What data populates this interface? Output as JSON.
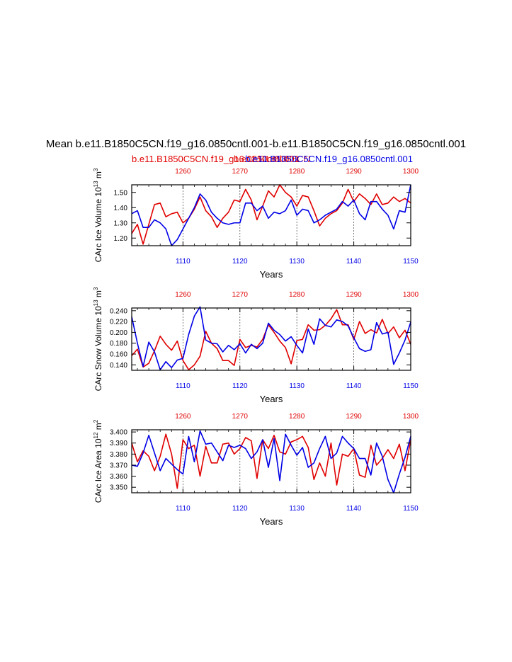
{
  "figure": {
    "title": "Mean b.e11.B1850C5CN.f19_g16.0850cntl.001-b.e11.B1850C5CN.f19_g16.0850cntl.001",
    "legend": {
      "red": "b.e11.B1850C5CN.f19_g16.0850cntl.001",
      "blue": "b.e11.B1850C5CN.f19_g16.0850cntl.001",
      "overlap": "b.e11.B1850C5CN"
    }
  },
  "colors": {
    "red": "#e00000",
    "blue": "#0000e6",
    "axis": "#000000"
  },
  "chart_data": [
    {
      "type": "line",
      "ylabel": "CArc Ice Volume",
      "ylabel_units": "10^13 m^3",
      "unit_mult": "10",
      "unit_mult_exp": "13",
      "unit_base": " m",
      "unit_base_exp": "3",
      "xlabel": "Years",
      "ylim": [
        1.15,
        1.55
      ],
      "yticks": [
        1.2,
        1.3,
        1.4,
        1.5
      ],
      "ytick_labels": [
        "1.20",
        "1.30",
        "1.40",
        "1.50"
      ],
      "bottom_axis": {
        "range": [
          1101,
          1150
        ],
        "ticks": [
          1110,
          1120,
          1130,
          1140,
          1150
        ],
        "tick_labels": [
          "1110",
          "1120",
          "1130",
          "1140",
          "1150"
        ]
      },
      "top_axis": {
        "range": [
          1251,
          1300
        ],
        "ticks": [
          1260,
          1270,
          1280,
          1290,
          1300
        ],
        "tick_labels": [
          "1260",
          "1270",
          "1280",
          "1290",
          "1300"
        ]
      },
      "series": [
        {
          "name": "red",
          "axis": "top",
          "values": [
            1.23,
            1.29,
            1.16,
            1.29,
            1.42,
            1.43,
            1.34,
            1.36,
            1.37,
            1.3,
            1.33,
            1.39,
            1.47,
            1.38,
            1.34,
            1.27,
            1.33,
            1.37,
            1.45,
            1.44,
            1.52,
            1.45,
            1.32,
            1.41,
            1.51,
            1.47,
            1.55,
            1.5,
            1.47,
            1.41,
            1.48,
            1.47,
            1.38,
            1.28,
            1.33,
            1.36,
            1.38,
            1.43,
            1.52,
            1.44,
            1.49,
            1.46,
            1.42,
            1.49,
            1.42,
            1.43,
            1.47,
            1.44,
            1.46,
            1.43
          ]
        },
        {
          "name": "blue",
          "axis": "bottom",
          "values": [
            1.36,
            1.38,
            1.27,
            1.27,
            1.32,
            1.3,
            1.26,
            1.15,
            1.19,
            1.26,
            1.33,
            1.4,
            1.49,
            1.45,
            1.37,
            1.33,
            1.3,
            1.29,
            1.3,
            1.3,
            1.43,
            1.43,
            1.38,
            1.41,
            1.33,
            1.37,
            1.36,
            1.38,
            1.45,
            1.35,
            1.39,
            1.38,
            1.3,
            1.32,
            1.35,
            1.37,
            1.39,
            1.44,
            1.41,
            1.45,
            1.36,
            1.32,
            1.44,
            1.44,
            1.39,
            1.35,
            1.26,
            1.38,
            1.37,
            1.55
          ]
        }
      ]
    },
    {
      "type": "line",
      "ylabel": "CArc Snow Volume",
      "ylabel_units": "10^13 m^3",
      "unit_mult": "10",
      "unit_mult_exp": "13",
      "unit_base": " m",
      "unit_base_exp": "3",
      "xlabel": "Years",
      "ylim": [
        0.13,
        0.245
      ],
      "yticks": [
        0.14,
        0.16,
        0.18,
        0.2,
        0.22,
        0.24
      ],
      "ytick_labels": [
        "0.140",
        "0.160",
        "0.180",
        "0.200",
        "0.220",
        "0.240"
      ],
      "bottom_axis": {
        "range": [
          1101,
          1150
        ],
        "ticks": [
          1110,
          1120,
          1130,
          1140,
          1150
        ],
        "tick_labels": [
          "1110",
          "1120",
          "1130",
          "1140",
          "1150"
        ]
      },
      "top_axis": {
        "range": [
          1251,
          1300
        ],
        "ticks": [
          1260,
          1270,
          1280,
          1290,
          1300
        ],
        "tick_labels": [
          "1260",
          "1270",
          "1280",
          "1290",
          "1300"
        ]
      },
      "series": [
        {
          "name": "red",
          "axis": "top",
          "values": [
            0.157,
            0.169,
            0.136,
            0.143,
            0.166,
            0.193,
            0.178,
            0.167,
            0.184,
            0.148,
            0.131,
            0.14,
            0.156,
            0.202,
            0.18,
            0.17,
            0.148,
            0.148,
            0.139,
            0.187,
            0.172,
            0.176,
            0.173,
            0.187,
            0.214,
            0.2,
            0.184,
            0.172,
            0.142,
            0.185,
            0.187,
            0.214,
            0.204,
            0.205,
            0.213,
            0.225,
            0.242,
            0.214,
            0.214,
            0.187,
            0.22,
            0.198,
            0.205,
            0.199,
            0.224,
            0.198,
            0.21,
            0.19,
            0.204,
            0.178
          ]
        },
        {
          "name": "blue",
          "axis": "bottom",
          "values": [
            0.229,
            0.18,
            0.137,
            0.182,
            0.164,
            0.131,
            0.146,
            0.135,
            0.149,
            0.152,
            0.196,
            0.23,
            0.247,
            0.186,
            0.18,
            0.179,
            0.164,
            0.176,
            0.168,
            0.179,
            0.162,
            0.178,
            0.17,
            0.18,
            0.217,
            0.204,
            0.196,
            0.184,
            0.192,
            0.176,
            0.162,
            0.206,
            0.178,
            0.225,
            0.213,
            0.21,
            0.223,
            0.22,
            0.212,
            0.19,
            0.17,
            0.165,
            0.168,
            0.218,
            0.197,
            0.2,
            0.141,
            0.162,
            0.186,
            0.219
          ]
        }
      ]
    },
    {
      "type": "line",
      "ylabel": "CArc Ice Area",
      "ylabel_units": "10^12 m^2",
      "unit_mult": "10",
      "unit_mult_exp": "12",
      "unit_base": " m",
      "unit_base_exp": "2",
      "xlabel": "Years",
      "ylim": [
        3.345,
        3.402
      ],
      "yticks": [
        3.35,
        3.36,
        3.37,
        3.38,
        3.39,
        3.4
      ],
      "ytick_labels": [
        "3.350",
        "3.360",
        "3.370",
        "3.380",
        "3.390",
        "3.400"
      ],
      "bottom_axis": {
        "range": [
          1101,
          1150
        ],
        "ticks": [
          1110,
          1120,
          1130,
          1140,
          1150
        ],
        "tick_labels": [
          "1110",
          "1120",
          "1130",
          "1140",
          "1150"
        ]
      },
      "top_axis": {
        "range": [
          1251,
          1300
        ],
        "ticks": [
          1260,
          1270,
          1280,
          1290,
          1300
        ],
        "tick_labels": [
          "1260",
          "1270",
          "1280",
          "1290",
          "1300"
        ]
      },
      "series": [
        {
          "name": "red",
          "axis": "top",
          "values": [
            3.39,
            3.373,
            3.383,
            3.378,
            3.365,
            3.378,
            3.398,
            3.38,
            3.349,
            3.393,
            3.385,
            3.388,
            3.36,
            3.387,
            3.372,
            3.372,
            3.389,
            3.39,
            3.38,
            3.385,
            3.395,
            3.392,
            3.358,
            3.393,
            3.385,
            3.397,
            3.382,
            3.38,
            3.391,
            3.393,
            3.396,
            3.386,
            3.357,
            3.372,
            3.36,
            3.39,
            3.352,
            3.38,
            3.378,
            3.385,
            3.361,
            3.359,
            3.388,
            3.37,
            3.376,
            3.384,
            3.376,
            3.389,
            3.365,
            3.393
          ]
        },
        {
          "name": "blue",
          "axis": "bottom",
          "values": [
            3.37,
            3.369,
            3.381,
            3.397,
            3.381,
            3.365,
            3.376,
            3.371,
            3.366,
            3.362,
            3.396,
            3.373,
            3.401,
            3.389,
            3.39,
            3.382,
            3.374,
            3.388,
            3.386,
            3.388,
            3.385,
            3.376,
            3.382,
            3.393,
            3.368,
            3.394,
            3.356,
            3.398,
            3.388,
            3.379,
            3.386,
            3.368,
            3.372,
            3.385,
            3.396,
            3.376,
            3.381,
            3.396,
            3.39,
            3.385,
            3.376,
            3.376,
            3.361,
            3.39,
            3.378,
            3.357,
            3.345,
            3.362,
            3.377,
            3.396
          ]
        }
      ]
    }
  ]
}
